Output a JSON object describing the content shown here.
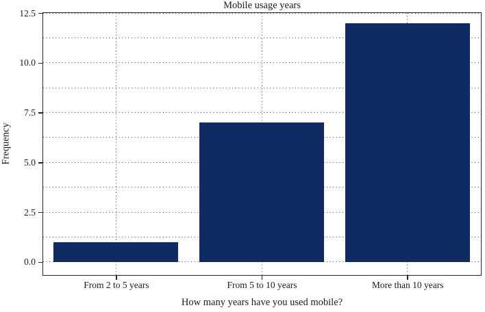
{
  "chart_data": {
    "type": "bar",
    "title": "Mobile usage years",
    "xlabel": "How many years have you used mobile?",
    "ylabel": "Frequency",
    "categories": [
      "From 2 to 5 years",
      "From 5 to 10 years",
      "More than 10 years"
    ],
    "values": [
      1,
      7,
      12
    ],
    "ylim": [
      -0.625,
      12.5
    ],
    "y_major_ticks": [
      0.0,
      2.5,
      5.0,
      7.5,
      10.0,
      12.5
    ],
    "y_tick_labels": [
      "0.0",
      "2.5",
      "5.0",
      "7.5",
      "10.0",
      "12.5"
    ],
    "y_minor_step": 1.25,
    "grid": "dotted horizontal minor+major lines, dotted vertical line at each bar center",
    "legend": "none",
    "bar_color": "#102a63",
    "frame_color": "#262626",
    "grid_color": "#474747",
    "text_color": "#1a1a1a",
    "background_color": "#ffffff",
    "bar_width_fraction": 0.855
  }
}
